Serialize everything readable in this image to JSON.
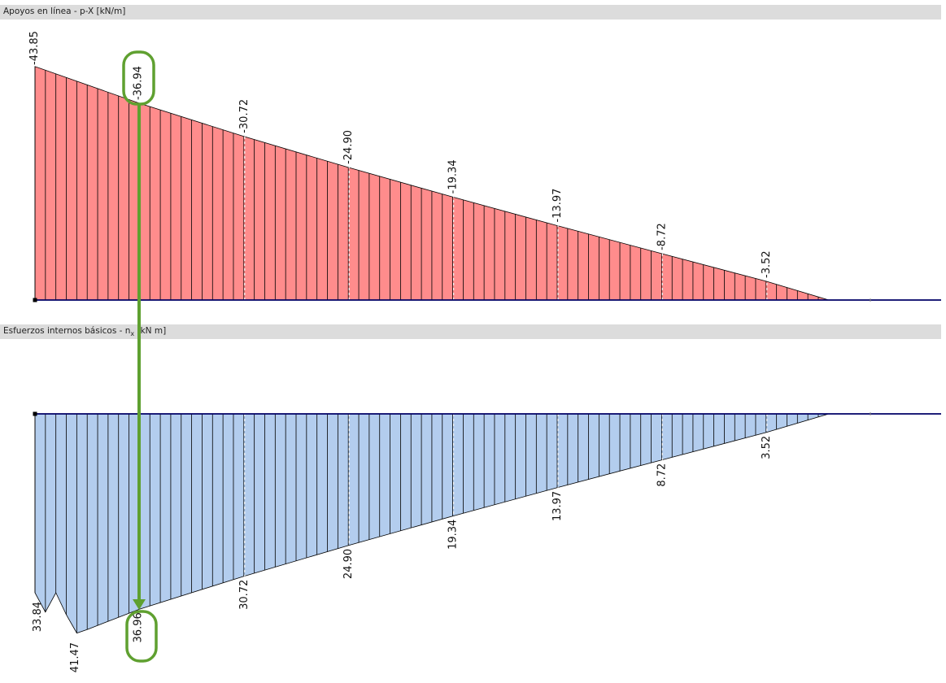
{
  "panels": {
    "top_title": "Apoyos en línea - p-X [kN/m]",
    "bottom_title_prefix": "Esfuerzos internos básicos - n",
    "bottom_title_sub": "x",
    "bottom_title_suffix": " [kN m]"
  },
  "colors": {
    "top_fill": "#ff8c8c",
    "bottom_fill": "#b3cdee",
    "baseline": "#000066",
    "extreme_top": "#dd0000",
    "extreme_bottom": "#0000cc",
    "highlight": "#5fa030",
    "header_bg": "#dcdcdc"
  },
  "chart_data": [
    {
      "type": "area",
      "title": "Apoyos en línea - p-X [kN/m]",
      "x": [
        0,
        1,
        2,
        3,
        4,
        5,
        6,
        7,
        7.6,
        8.5
      ],
      "y": [
        -43.85,
        -36.94,
        -30.72,
        -24.9,
        -19.34,
        -13.97,
        -8.72,
        -3.52,
        0,
        0
      ],
      "labels": [
        {
          "x": 0,
          "text": "-43.85",
          "extreme": true
        },
        {
          "x": 1,
          "text": "-36.94",
          "highlight": true
        },
        {
          "x": 2,
          "text": "-30.72"
        },
        {
          "x": 3,
          "text": "-24.90"
        },
        {
          "x": 4,
          "text": "-19.34"
        },
        {
          "x": 5,
          "text": "-13.97"
        },
        {
          "x": 6,
          "text": "-8.72"
        },
        {
          "x": 7,
          "text": "-3.52"
        }
      ]
    },
    {
      "type": "area",
      "title": "Esfuerzos internos básicos - nx [kN m]",
      "x": [
        0,
        0.1,
        0.2,
        0.3,
        0.4,
        0.5,
        1,
        2,
        3,
        4,
        5,
        6,
        7,
        7.6,
        8.5
      ],
      "y": [
        33.84,
        37.5,
        33.84,
        38.0,
        41.47,
        40.8,
        36.96,
        30.72,
        24.9,
        19.34,
        13.97,
        8.72,
        3.52,
        0,
        0
      ],
      "labels": [
        {
          "x": 0,
          "text": "33.84"
        },
        {
          "x": 0.4,
          "text": "41.47",
          "extreme": true
        },
        {
          "x": 1,
          "text": "36.96",
          "highlight": true
        },
        {
          "x": 2,
          "text": "30.72"
        },
        {
          "x": 3,
          "text": "24.90"
        },
        {
          "x": 4,
          "text": "19.34"
        },
        {
          "x": 5,
          "text": "13.97"
        },
        {
          "x": 6,
          "text": "8.72"
        },
        {
          "x": 7,
          "text": "3.52"
        }
      ]
    }
  ]
}
